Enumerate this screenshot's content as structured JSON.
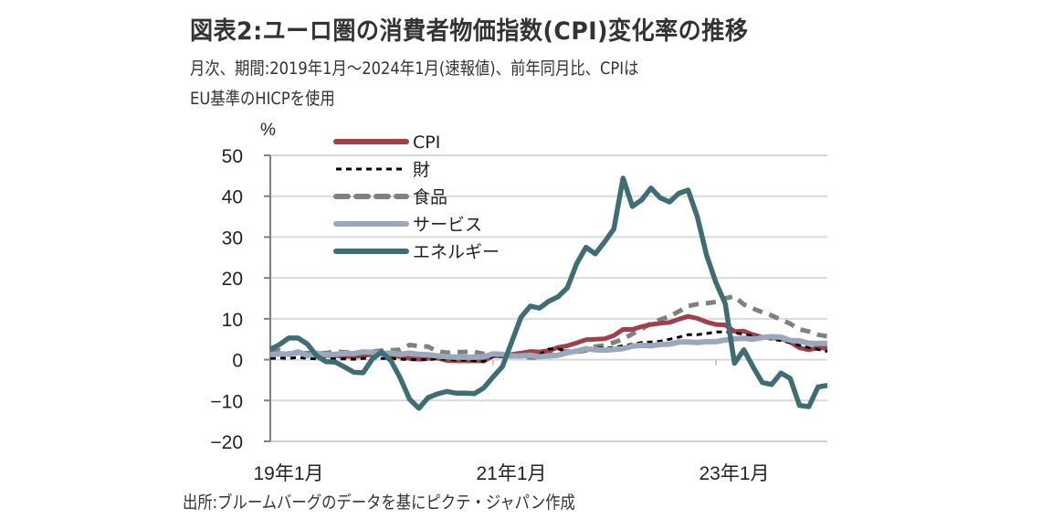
{
  "header": {
    "title": "図表2:ユーロ圏の消費者物価指数(CPI)変化率の推移",
    "subtitle_line1": "月次、期間:2019年1月～2024年1月(速報値)、前年同月比、CPIは",
    "subtitle_line2": "EU基準のHICPを使用"
  },
  "footer": {
    "source": "出所:ブルームバーグのデータを基にピクテ・ジャパン作成"
  },
  "chart_data": {
    "type": "line",
    "title": "図表2:ユーロ圏の消費者物価指数(CPI)変化率の推移",
    "xlabel": "",
    "ylabel": "%",
    "ylim": [
      -20,
      50
    ],
    "yticks": [
      50,
      40,
      30,
      20,
      10,
      0,
      -10,
      -20
    ],
    "ytick_labels": [
      "50",
      "40",
      "30",
      "20",
      "10",
      "0",
      "−10",
      "−20"
    ],
    "xtick_labels": [
      "19年1月",
      "21年1月",
      "23年1月"
    ],
    "xtick_index": [
      0,
      24,
      48
    ],
    "x_start": "2019-01",
    "x_end": "2024-01",
    "frequency": "monthly",
    "grid": true,
    "legend_position": "top-left",
    "colors": {
      "CPI": "#a1404a",
      "財": "#000000",
      "食品": "#808080",
      "サービス": "#9aa8bd",
      "エネルギー": "#3e6e74"
    },
    "series": [
      {
        "name": "CPI",
        "style": "solid",
        "values": [
          1.4,
          1.5,
          1.4,
          1.7,
          1.2,
          1.3,
          1.0,
          1.0,
          0.8,
          0.7,
          1.0,
          1.3,
          1.4,
          1.2,
          0.7,
          0.3,
          0.1,
          0.3,
          0.4,
          -0.2,
          -0.3,
          -0.3,
          -0.3,
          -0.3,
          0.9,
          0.9,
          1.3,
          1.6,
          2.0,
          1.9,
          2.2,
          3.0,
          3.4,
          4.1,
          4.9,
          5.0,
          5.1,
          5.9,
          7.4,
          7.4,
          8.1,
          8.6,
          8.9,
          9.1,
          9.9,
          10.6,
          10.1,
          9.2,
          8.6,
          8.5,
          6.9,
          7.0,
          6.1,
          5.5,
          5.3,
          5.2,
          4.3,
          2.9,
          2.4,
          2.9,
          2.8
        ]
      },
      {
        "name": "財",
        "style": "dotted",
        "values": [
          0.3,
          0.4,
          0.3,
          0.5,
          0.3,
          0.2,
          0.1,
          0.2,
          0.2,
          0.1,
          0.3,
          0.4,
          0.3,
          0.3,
          0.1,
          0.0,
          0.0,
          0.0,
          0.2,
          0.1,
          -0.1,
          -0.1,
          -0.3,
          -0.5,
          0.9,
          0.8,
          0.6,
          0.9,
          1.0,
          1.2,
          2.6,
          2.6,
          2.1,
          2.0,
          2.4,
          2.9,
          2.8,
          3.0,
          3.4,
          3.8,
          4.2,
          4.3,
          4.5,
          5.0,
          5.5,
          6.1,
          6.1,
          6.4,
          6.8,
          6.8,
          6.6,
          6.2,
          5.8,
          5.5,
          5.0,
          4.7,
          4.1,
          3.5,
          2.9,
          2.5,
          2.0
        ]
      },
      {
        "name": "食品",
        "style": "dashed",
        "values": [
          1.8,
          2.3,
          1.5,
          1.5,
          1.6,
          1.6,
          1.6,
          2.0,
          1.8,
          1.8,
          1.8,
          2.0,
          2.2,
          2.3,
          2.4,
          3.6,
          3.3,
          3.2,
          2.0,
          1.7,
          1.8,
          1.9,
          1.9,
          1.4,
          1.4,
          1.3,
          1.1,
          0.7,
          0.5,
          0.5,
          1.6,
          2.0,
          2.0,
          1.9,
          2.2,
          3.2,
          3.5,
          4.2,
          5.0,
          6.3,
          7.5,
          8.9,
          9.8,
          10.6,
          11.8,
          13.1,
          13.6,
          13.8,
          14.1,
          15.0,
          15.5,
          13.5,
          12.5,
          11.6,
          10.8,
          9.8,
          8.8,
          7.4,
          6.9,
          6.1,
          5.7
        ]
      },
      {
        "name": "サービス",
        "style": "solid",
        "values": [
          1.2,
          1.4,
          1.3,
          1.9,
          1.0,
          1.6,
          1.2,
          1.3,
          1.5,
          1.5,
          1.9,
          1.8,
          1.5,
          1.6,
          1.3,
          1.6,
          1.3,
          1.2,
          0.9,
          0.7,
          0.6,
          0.6,
          0.6,
          0.7,
          1.4,
          1.3,
          0.9,
          0.9,
          1.1,
          0.7,
          0.9,
          1.1,
          1.7,
          2.1,
          2.7,
          2.4,
          2.3,
          2.5,
          2.7,
          3.3,
          3.5,
          3.4,
          3.7,
          3.8,
          4.3,
          4.3,
          4.2,
          4.4,
          4.4,
          4.8,
          5.1,
          5.2,
          5.0,
          5.4,
          5.6,
          5.5,
          4.7,
          4.6,
          4.0,
          4.0,
          4.0
        ]
      },
      {
        "name": "エネルギー",
        "style": "solid",
        "values": [
          2.5,
          3.7,
          5.3,
          5.3,
          3.8,
          0.9,
          -0.5,
          -0.6,
          -1.8,
          -3.1,
          -3.2,
          0.2,
          1.9,
          -0.3,
          -4.5,
          -9.7,
          -11.9,
          -9.3,
          -8.4,
          -7.8,
          -8.2,
          -8.2,
          -8.3,
          -6.9,
          -4.2,
          -1.7,
          4.3,
          10.4,
          13.1,
          12.6,
          14.3,
          15.4,
          17.6,
          23.5,
          27.5,
          25.9,
          28.8,
          32.0,
          44.4,
          37.5,
          39.1,
          42.0,
          39.6,
          38.6,
          40.7,
          41.5,
          34.9,
          25.5,
          18.9,
          13.7,
          -0.9,
          2.4,
          -1.8,
          -5.6,
          -6.1,
          -3.3,
          -4.6,
          -11.2,
          -11.5,
          -6.7,
          -6.3
        ]
      }
    ]
  }
}
